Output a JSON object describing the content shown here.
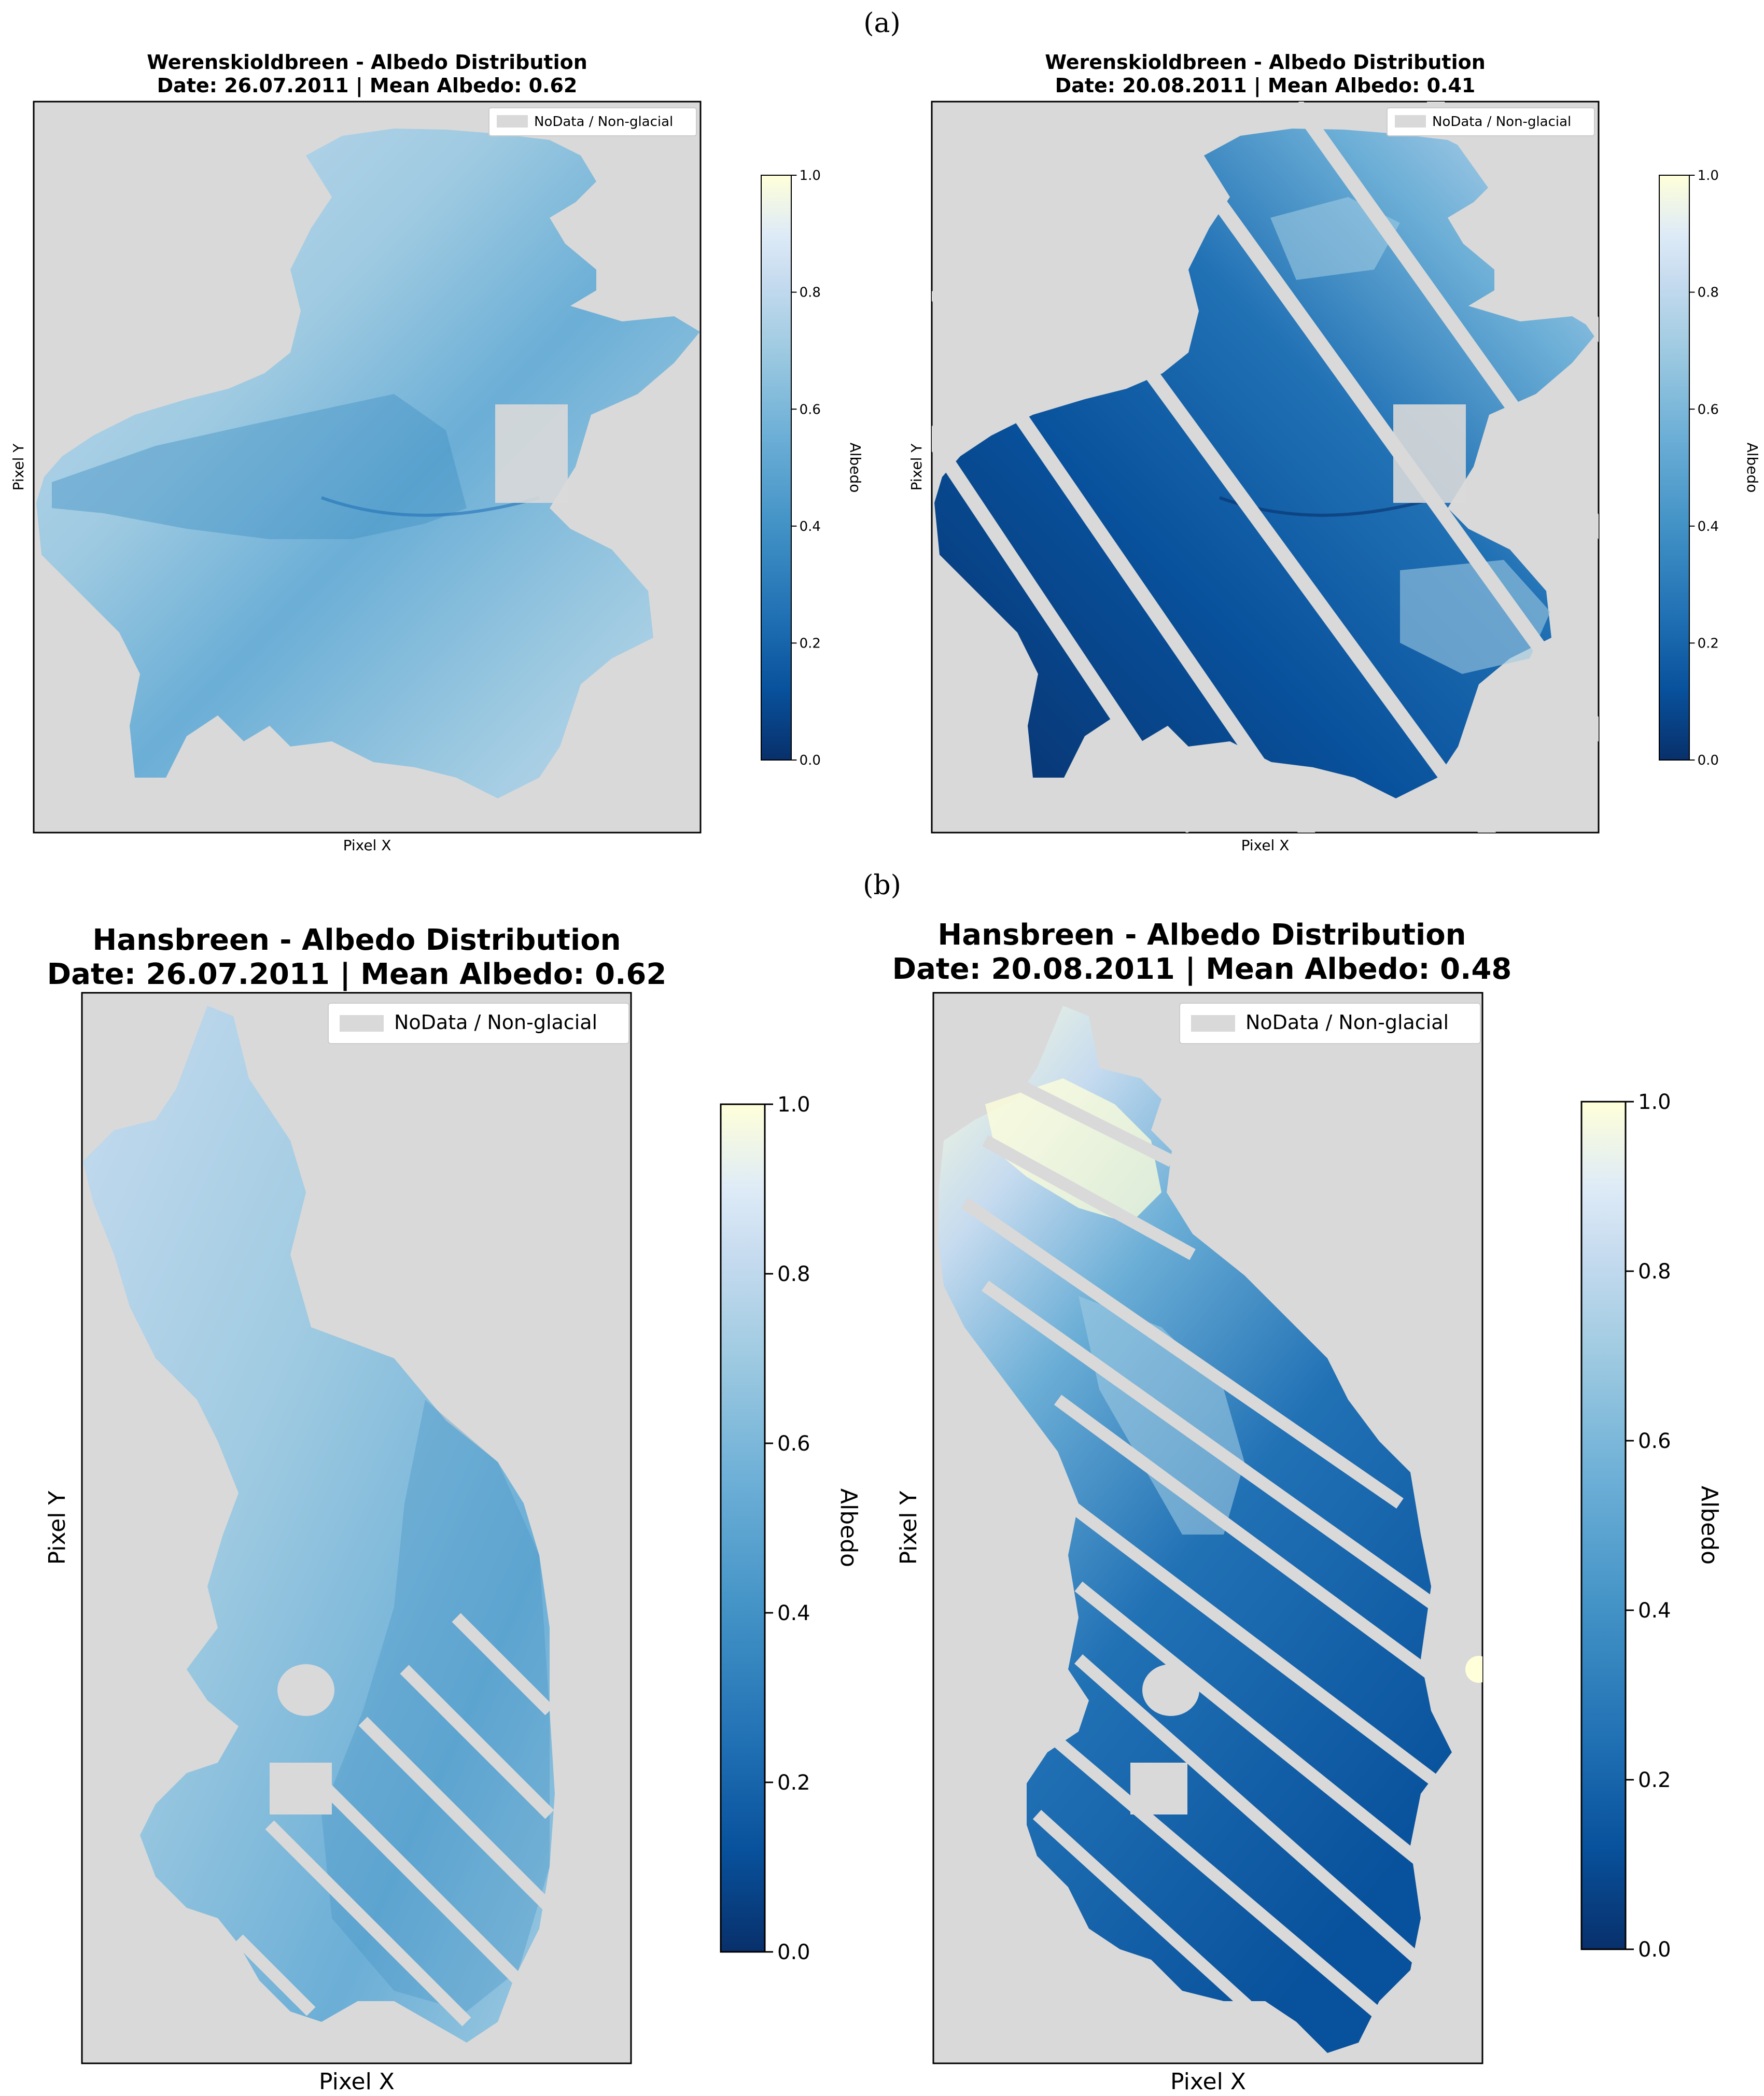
{
  "figure": {
    "panel_labels": [
      "(a)",
      "(b)"
    ]
  },
  "colors": {
    "nodata": "#d9d9d9",
    "colormap": [
      "#08306b",
      "#08519c",
      "#2171b5",
      "#4292c6",
      "#6baed6",
      "#9ecae1",
      "#c6dbef",
      "#deebf7",
      "#ffffd9"
    ],
    "stripe": "#d9d9d9"
  },
  "chart_data": [
    {
      "type": "heatmap",
      "title": "Werenskioldbreen - Albedo Distribution",
      "subtitle": "Date: 26.07.2011 | Mean Albedo: 0.62",
      "xlabel": "Pixel X",
      "ylabel": "Pixel Y",
      "colorbar_label": "Albedo",
      "colorbar_range": [
        0.0,
        1.0
      ],
      "colorbar_ticks": [
        "0.0",
        "0.2",
        "0.4",
        "0.6",
        "0.8",
        "1.0"
      ],
      "legend": [
        "NoData / Non-glacial"
      ],
      "legend_position": "top-right",
      "mean_albedo": 0.62,
      "date": "26.07.2011",
      "axis_ticks": "hidden"
    },
    {
      "type": "heatmap",
      "title": "Werenskioldbreen - Albedo Distribution",
      "subtitle": "Date: 20.08.2011 | Mean Albedo: 0.41",
      "xlabel": "Pixel X",
      "ylabel": "Pixel Y",
      "colorbar_label": "Albedo",
      "colorbar_range": [
        0.0,
        1.0
      ],
      "colorbar_ticks": [
        "0.0",
        "0.2",
        "0.4",
        "0.6",
        "0.8",
        "1.0"
      ],
      "legend": [
        "NoData / Non-glacial"
      ],
      "legend_position": "top-right",
      "mean_albedo": 0.41,
      "date": "20.08.2011",
      "axis_ticks": "hidden"
    },
    {
      "type": "heatmap",
      "title": "Hansbreen - Albedo Distribution",
      "subtitle": "Date: 26.07.2011 | Mean Albedo: 0.62",
      "xlabel": "Pixel X",
      "ylabel": "Pixel Y",
      "colorbar_label": "Albedo",
      "colorbar_range": [
        0.0,
        1.0
      ],
      "colorbar_ticks": [
        "0.0",
        "0.2",
        "0.4",
        "0.6",
        "0.8",
        "1.0"
      ],
      "legend": [
        "NoData / Non-glacial"
      ],
      "legend_position": "top-right",
      "mean_albedo": 0.62,
      "date": "26.07.2011",
      "axis_ticks": "hidden"
    },
    {
      "type": "heatmap",
      "title": "Hansbreen - Albedo Distribution",
      "subtitle": "Date: 20.08.2011 | Mean Albedo: 0.48",
      "xlabel": "Pixel X",
      "ylabel": "Pixel Y",
      "colorbar_label": "Albedo",
      "colorbar_range": [
        0.0,
        1.0
      ],
      "colorbar_ticks": [
        "0.0",
        "0.2",
        "0.4",
        "0.6",
        "0.8",
        "1.0"
      ],
      "legend": [
        "NoData / Non-glacial"
      ],
      "legend_position": "top-right",
      "mean_albedo": 0.48,
      "date": "20.08.2011",
      "axis_ticks": "hidden"
    }
  ]
}
